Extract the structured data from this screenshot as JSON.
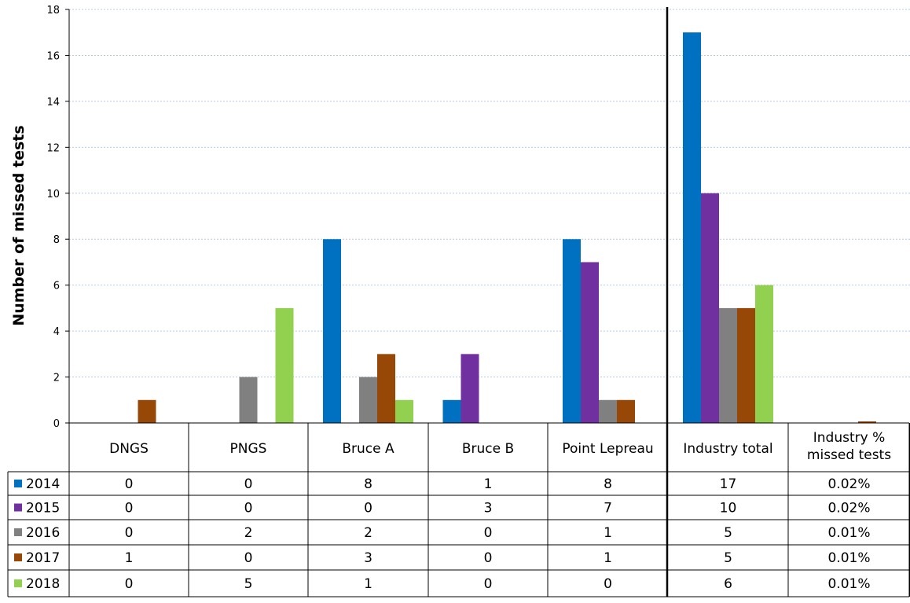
{
  "chart_data": {
    "type": "bar",
    "title": "",
    "xlabel": "",
    "ylabel": "Number of missed tests",
    "ylim": [
      0,
      18
    ],
    "yticks": [
      0,
      2,
      4,
      6,
      8,
      10,
      12,
      14,
      16,
      18
    ],
    "grid": true,
    "legend": "table-left",
    "categories": [
      "DNGS",
      "PNGS",
      "Bruce A",
      "Bruce B",
      "Point Lepreau",
      "Industry total",
      "Industry % missed tests"
    ],
    "plotted_categories": 6,
    "separator_after_category": "Point Lepreau",
    "series": [
      {
        "name": "2014",
        "color": "#0070C0",
        "values": [
          0,
          0,
          8,
          1,
          8,
          17,
          0.02
        ],
        "table": [
          "0",
          "0",
          "8",
          "1",
          "8",
          "17",
          "0.02%"
        ]
      },
      {
        "name": "2015",
        "color": "#7030A0",
        "values": [
          0,
          0,
          0,
          3,
          7,
          10,
          0.02
        ],
        "table": [
          "0",
          "0",
          "0",
          "3",
          "7",
          "10",
          "0.02%"
        ]
      },
      {
        "name": "2016",
        "color": "#808080",
        "values": [
          0,
          2,
          2,
          0,
          1,
          5,
          0.01
        ],
        "table": [
          "0",
          "2",
          "2",
          "0",
          "1",
          "5",
          "0.01%"
        ]
      },
      {
        "name": "2017",
        "color": "#974706",
        "values": [
          1,
          0,
          3,
          0,
          1,
          5,
          0.01
        ],
        "table": [
          "1",
          "0",
          "3",
          "0",
          "1",
          "5",
          "0.01%"
        ]
      },
      {
        "name": "2018",
        "color": "#92D050",
        "values": [
          0,
          5,
          1,
          0,
          0,
          6,
          0.01
        ],
        "table": [
          "0",
          "5",
          "1",
          "0",
          "0",
          "6",
          "0.01%"
        ]
      }
    ]
  }
}
